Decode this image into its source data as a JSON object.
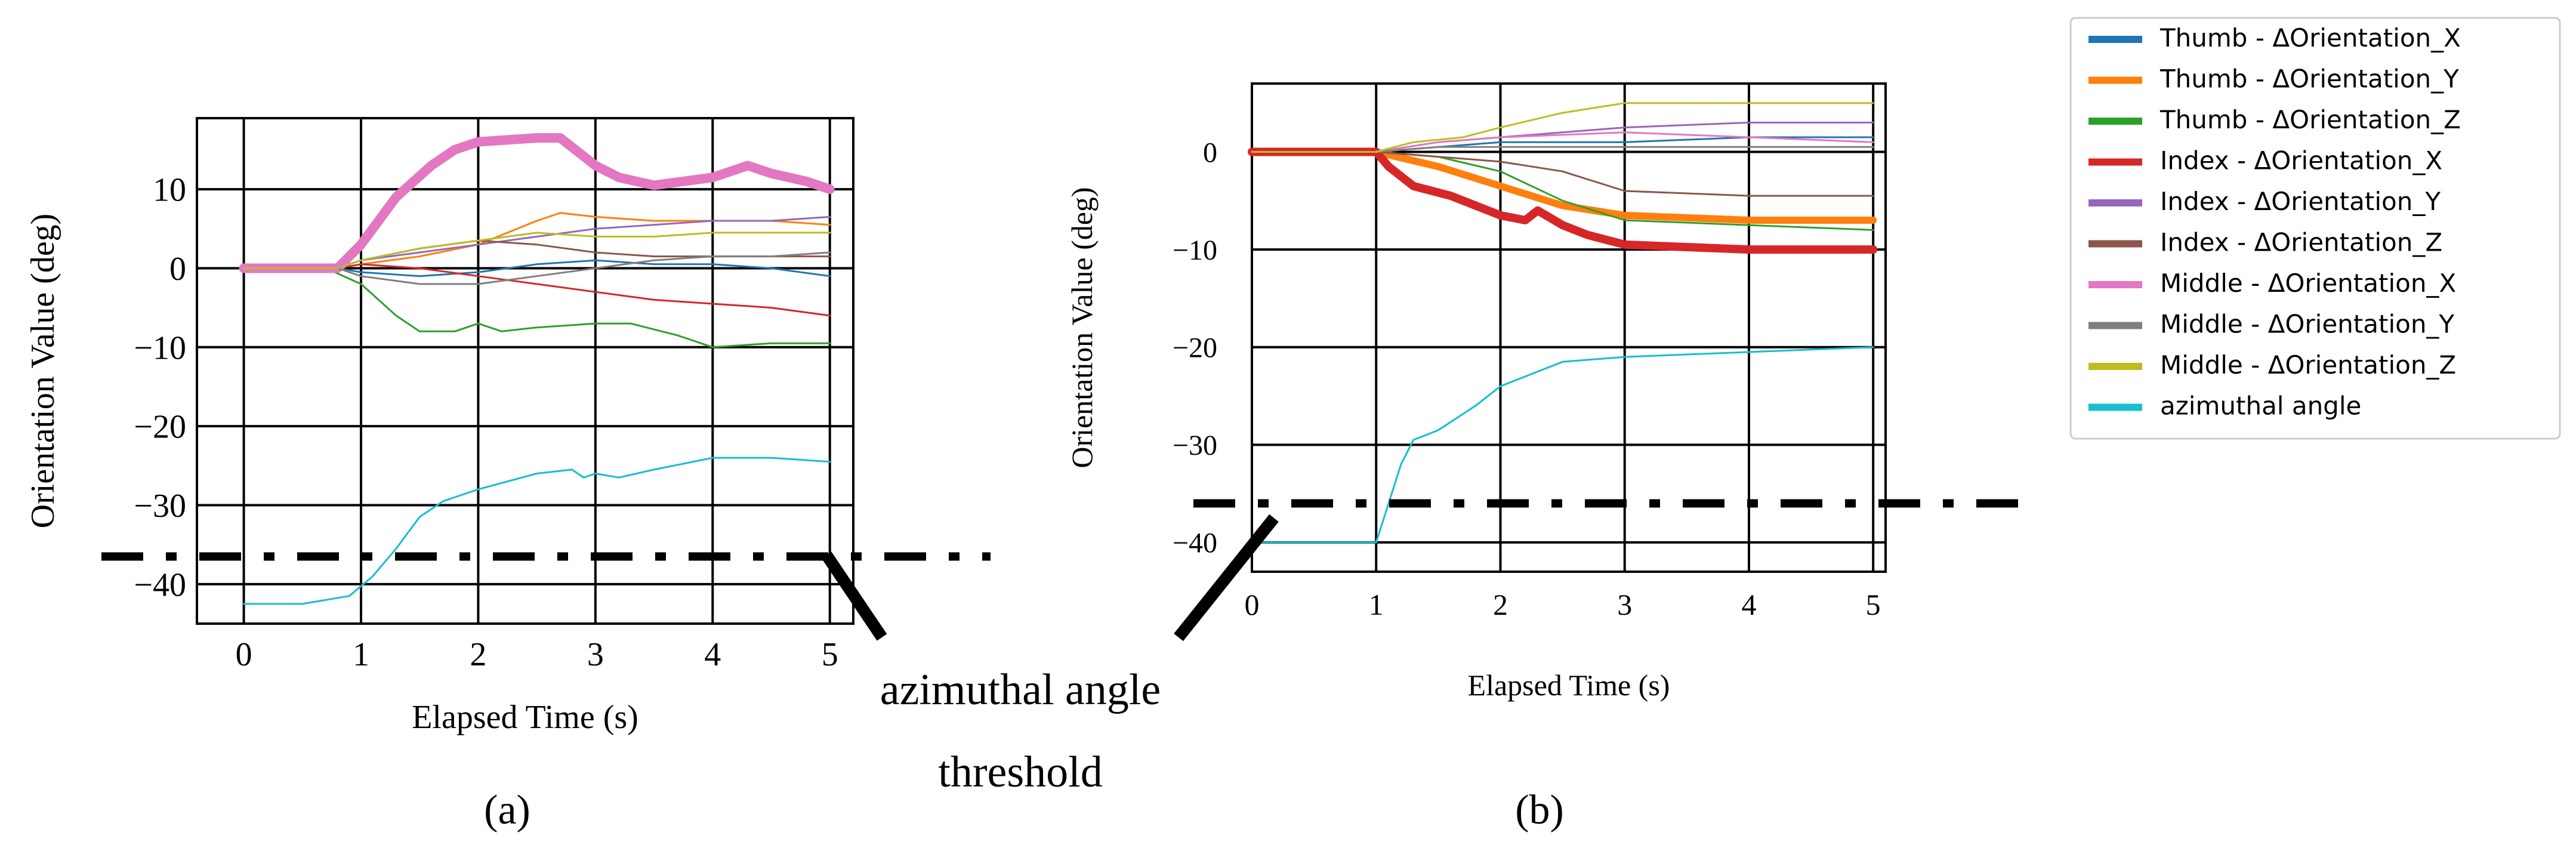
{
  "chart_data": [
    {
      "type": "line",
      "panel_label": "(a)",
      "xlabel": "Elapsed Time (s)",
      "ylabel": "Orientation Value (deg)",
      "xlim": [
        -0.4,
        5.2
      ],
      "ylim": [
        -45,
        19
      ],
      "x_ticks": [
        0,
        1,
        2,
        3,
        4,
        5
      ],
      "y_ticks": [
        10,
        0,
        -10,
        -20,
        -30,
        -40
      ],
      "y_tick_labels": [
        "10",
        "0",
        "−10",
        "−20",
        "−30",
        "−40"
      ],
      "threshold": -36.5,
      "series": [
        {
          "name": "Thumb - ΔOrientation_X",
          "color": "#1f77b4",
          "width": 3,
          "points": [
            [
              0,
              0
            ],
            [
              0.8,
              0
            ],
            [
              1,
              -0.5
            ],
            [
              1.5,
              -1
            ],
            [
              2,
              -0.5
            ],
            [
              2.5,
              0.5
            ],
            [
              3,
              1
            ],
            [
              3.5,
              0.5
            ],
            [
              4,
              0.5
            ],
            [
              4.5,
              0
            ],
            [
              5,
              -1
            ]
          ]
        },
        {
          "name": "Thumb - ΔOrientation_Y",
          "color": "#ff7f0e",
          "width": 3,
          "points": [
            [
              0,
              0
            ],
            [
              0.8,
              0
            ],
            [
              1,
              0.5
            ],
            [
              1.5,
              1.5
            ],
            [
              2,
              3
            ],
            [
              2.5,
              6
            ],
            [
              2.7,
              7
            ],
            [
              3,
              6.5
            ],
            [
              3.5,
              6
            ],
            [
              4,
              6
            ],
            [
              4.5,
              6
            ],
            [
              5,
              5.5
            ]
          ]
        },
        {
          "name": "Thumb - ΔOrientation_Z",
          "color": "#2ca02c",
          "width": 3,
          "points": [
            [
              0,
              0
            ],
            [
              0.7,
              0
            ],
            [
              1,
              -2
            ],
            [
              1.3,
              -6
            ],
            [
              1.5,
              -8
            ],
            [
              1.8,
              -8
            ],
            [
              2,
              -7
            ],
            [
              2.2,
              -8
            ],
            [
              2.5,
              -7.5
            ],
            [
              3,
              -7
            ],
            [
              3.3,
              -7
            ],
            [
              3.7,
              -8.5
            ],
            [
              4,
              -10
            ],
            [
              4.5,
              -9.5
            ],
            [
              5,
              -9.5
            ]
          ]
        },
        {
          "name": "Index - ΔOrientation_X",
          "color": "#d62728",
          "width": 3,
          "points": [
            [
              0,
              0
            ],
            [
              0.8,
              0
            ],
            [
              1,
              0.5
            ],
            [
              1.5,
              0
            ],
            [
              2,
              -1
            ],
            [
              2.5,
              -2
            ],
            [
              3,
              -3
            ],
            [
              3.5,
              -4
            ],
            [
              4,
              -4.5
            ],
            [
              4.5,
              -5
            ],
            [
              5,
              -6
            ]
          ]
        },
        {
          "name": "Index - ΔOrientation_Y",
          "color": "#9467bd",
          "width": 3,
          "points": [
            [
              0,
              0
            ],
            [
              0.8,
              0
            ],
            [
              1,
              1
            ],
            [
              1.5,
              2
            ],
            [
              2,
              3
            ],
            [
              2.5,
              4
            ],
            [
              3,
              5
            ],
            [
              3.5,
              5.5
            ],
            [
              4,
              6
            ],
            [
              4.5,
              6
            ],
            [
              5,
              6.5
            ]
          ]
        },
        {
          "name": "Index - ΔOrientation_Z",
          "color": "#8c564b",
          "width": 3,
          "points": [
            [
              0,
              0
            ],
            [
              0.8,
              0
            ],
            [
              1,
              1
            ],
            [
              1.5,
              2.5
            ],
            [
              2,
              3.5
            ],
            [
              2.5,
              3
            ],
            [
              3,
              2
            ],
            [
              3.5,
              1.5
            ],
            [
              4,
              1.5
            ],
            [
              4.5,
              1.5
            ],
            [
              5,
              1.5
            ]
          ]
        },
        {
          "name": "Middle - ΔOrientation_X",
          "color": "#e377c2",
          "width": 16,
          "points": [
            [
              0,
              0
            ],
            [
              0.5,
              0
            ],
            [
              0.8,
              0
            ],
            [
              1,
              3
            ],
            [
              1.3,
              9
            ],
            [
              1.6,
              13
            ],
            [
              1.8,
              15
            ],
            [
              2,
              16
            ],
            [
              2.5,
              16.5
            ],
            [
              2.7,
              16.5
            ],
            [
              3,
              13
            ],
            [
              3.2,
              11.5
            ],
            [
              3.5,
              10.5
            ],
            [
              4,
              11.5
            ],
            [
              4.3,
              13
            ],
            [
              4.5,
              12
            ],
            [
              4.8,
              11
            ],
            [
              5,
              10
            ]
          ]
        },
        {
          "name": "Middle - ΔOrientation_Y",
          "color": "#7f7f7f",
          "width": 3,
          "points": [
            [
              0,
              0
            ],
            [
              0.8,
              0
            ],
            [
              1,
              -1
            ],
            [
              1.5,
              -2
            ],
            [
              2,
              -2
            ],
            [
              2.5,
              -1
            ],
            [
              3,
              0
            ],
            [
              3.5,
              1
            ],
            [
              4,
              1.5
            ],
            [
              4.5,
              1.5
            ],
            [
              5,
              2
            ]
          ]
        },
        {
          "name": "Middle - ΔOrientation_Z",
          "color": "#bcbd22",
          "width": 3,
          "points": [
            [
              0,
              0
            ],
            [
              0.8,
              0
            ],
            [
              1,
              1
            ],
            [
              1.5,
              2.5
            ],
            [
              2,
              3.5
            ],
            [
              2.5,
              4.5
            ],
            [
              3,
              4
            ],
            [
              3.5,
              4
            ],
            [
              4,
              4.5
            ],
            [
              4.5,
              4.5
            ],
            [
              5,
              4.5
            ]
          ]
        },
        {
          "name": "azimuthal angle",
          "color": "#17becf",
          "width": 3,
          "points": [
            [
              0,
              -42.5
            ],
            [
              0.5,
              -42.5
            ],
            [
              0.9,
              -41.5
            ],
            [
              1.1,
              -39
            ],
            [
              1.3,
              -35.5
            ],
            [
              1.5,
              -31.5
            ],
            [
              1.7,
              -29.5
            ],
            [
              2,
              -28
            ],
            [
              2.5,
              -26
            ],
            [
              2.8,
              -25.5
            ],
            [
              2.9,
              -26.5
            ],
            [
              3,
              -26
            ],
            [
              3.2,
              -26.5
            ],
            [
              3.5,
              -25.5
            ],
            [
              4,
              -24
            ],
            [
              4.5,
              -24
            ],
            [
              5,
              -24.5
            ]
          ]
        }
      ]
    },
    {
      "type": "line",
      "panel_label": "(b)",
      "xlabel": "Elapsed Time (s)",
      "ylabel": "Orientation Value (deg)",
      "xlim": [
        0,
        5.1
      ],
      "ylim": [
        -43,
        7
      ],
      "x_ticks": [
        0,
        1,
        2,
        3,
        4,
        5
      ],
      "y_ticks": [
        0,
        -10,
        -20,
        -30,
        -40
      ],
      "y_tick_labels": [
        "0",
        "−10",
        "−20",
        "−30",
        "−40"
      ],
      "threshold": -36,
      "series": [
        {
          "name": "Thumb - ΔOrientation_X",
          "color": "#1f77b4",
          "width": 3,
          "points": [
            [
              0,
              0
            ],
            [
              1,
              0
            ],
            [
              1.5,
              0.5
            ],
            [
              2,
              1
            ],
            [
              3,
              1
            ],
            [
              4,
              1.5
            ],
            [
              5,
              1.5
            ]
          ]
        },
        {
          "name": "Thumb - ΔOrientation_Y",
          "color": "#ff7f0e",
          "width": 12,
          "points": [
            [
              0,
              0
            ],
            [
              1,
              0
            ],
            [
              1.5,
              -1.5
            ],
            [
              2,
              -3.5
            ],
            [
              2.5,
              -5.5
            ],
            [
              3,
              -6.5
            ],
            [
              4,
              -7
            ],
            [
              5,
              -7
            ]
          ]
        },
        {
          "name": "Thumb - ΔOrientation_Z",
          "color": "#2ca02c",
          "width": 3,
          "points": [
            [
              0,
              0
            ],
            [
              1,
              0
            ],
            [
              1.5,
              -0.5
            ],
            [
              2,
              -2
            ],
            [
              2.5,
              -5
            ],
            [
              3,
              -7
            ],
            [
              4,
              -7.5
            ],
            [
              5,
              -8
            ]
          ]
        },
        {
          "name": "Index - ΔOrientation_X",
          "color": "#d62728",
          "width": 14,
          "points": [
            [
              0,
              0
            ],
            [
              1,
              0
            ],
            [
              1.1,
              -1.5
            ],
            [
              1.3,
              -3.5
            ],
            [
              1.6,
              -4.5
            ],
            [
              2,
              -6.5
            ],
            [
              2.2,
              -7
            ],
            [
              2.3,
              -6
            ],
            [
              2.5,
              -7.5
            ],
            [
              2.7,
              -8.5
            ],
            [
              3,
              -9.5
            ],
            [
              4,
              -10
            ],
            [
              5,
              -10
            ]
          ]
        },
        {
          "name": "Index - ΔOrientation_Y",
          "color": "#9467bd",
          "width": 3,
          "points": [
            [
              0,
              0
            ],
            [
              1,
              0
            ],
            [
              1.5,
              1
            ],
            [
              2,
              1.5
            ],
            [
              3,
              2.5
            ],
            [
              4,
              3
            ],
            [
              5,
              3
            ]
          ]
        },
        {
          "name": "Index - ΔOrientation_Z",
          "color": "#8c564b",
          "width": 3,
          "points": [
            [
              0,
              0
            ],
            [
              1,
              0
            ],
            [
              1.5,
              -0.5
            ],
            [
              2,
              -1
            ],
            [
              2.5,
              -2
            ],
            [
              3,
              -4
            ],
            [
              4,
              -4.5
            ],
            [
              5,
              -4.5
            ]
          ]
        },
        {
          "name": "Middle - ΔOrientation_X",
          "color": "#e377c2",
          "width": 3,
          "points": [
            [
              0,
              0
            ],
            [
              1,
              0
            ],
            [
              1.5,
              1
            ],
            [
              2,
              1.5
            ],
            [
              3,
              2
            ],
            [
              4,
              1.5
            ],
            [
              5,
              1
            ]
          ]
        },
        {
          "name": "Middle - ΔOrientation_Y",
          "color": "#7f7f7f",
          "width": 3,
          "points": [
            [
              0,
              0
            ],
            [
              1,
              0
            ],
            [
              1.5,
              0.5
            ],
            [
              2,
              0.5
            ],
            [
              3,
              0.5
            ],
            [
              4,
              0.5
            ],
            [
              5,
              0.5
            ]
          ]
        },
        {
          "name": "Middle - ΔOrientation_Z",
          "color": "#bcbd22",
          "width": 3,
          "points": [
            [
              0,
              0
            ],
            [
              1,
              0
            ],
            [
              1.3,
              1
            ],
            [
              1.7,
              1.5
            ],
            [
              2,
              2.5
            ],
            [
              2.5,
              4
            ],
            [
              3,
              5
            ],
            [
              4,
              5
            ],
            [
              5,
              5
            ]
          ]
        },
        {
          "name": "azimuthal angle",
          "color": "#17becf",
          "width": 3,
          "points": [
            [
              0,
              -40
            ],
            [
              0.5,
              -40
            ],
            [
              1,
              -40
            ],
            [
              1.1,
              -36
            ],
            [
              1.2,
              -32
            ],
            [
              1.3,
              -29.5
            ],
            [
              1.5,
              -28.5
            ],
            [
              1.8,
              -26
            ],
            [
              2,
              -24
            ],
            [
              2.5,
              -21.5
            ],
            [
              3,
              -21
            ],
            [
              4,
              -20.5
            ],
            [
              5,
              -20
            ]
          ]
        }
      ]
    }
  ],
  "legend": [
    {
      "label": "Thumb - ΔOrientation_X",
      "color": "#1f77b4"
    },
    {
      "label": "Thumb - ΔOrientation_Y",
      "color": "#ff7f0e"
    },
    {
      "label": "Thumb - ΔOrientation_Z",
      "color": "#2ca02c"
    },
    {
      "label": "Index - ΔOrientation_X",
      "color": "#d62728"
    },
    {
      "label": "Index - ΔOrientation_Y",
      "color": "#9467bd"
    },
    {
      "label": "Index - ΔOrientation_Z",
      "color": "#8c564b"
    },
    {
      "label": "Middle - ΔOrientation_X",
      "color": "#e377c2"
    },
    {
      "label": "Middle - ΔOrientation_Y",
      "color": "#7f7f7f"
    },
    {
      "label": "Middle - ΔOrientation_Z",
      "color": "#bcbd22"
    },
    {
      "label": "azimuthal angle",
      "color": "#17becf"
    }
  ],
  "annotation": {
    "line1": "azimuthal angle",
    "line2": "threshold"
  }
}
